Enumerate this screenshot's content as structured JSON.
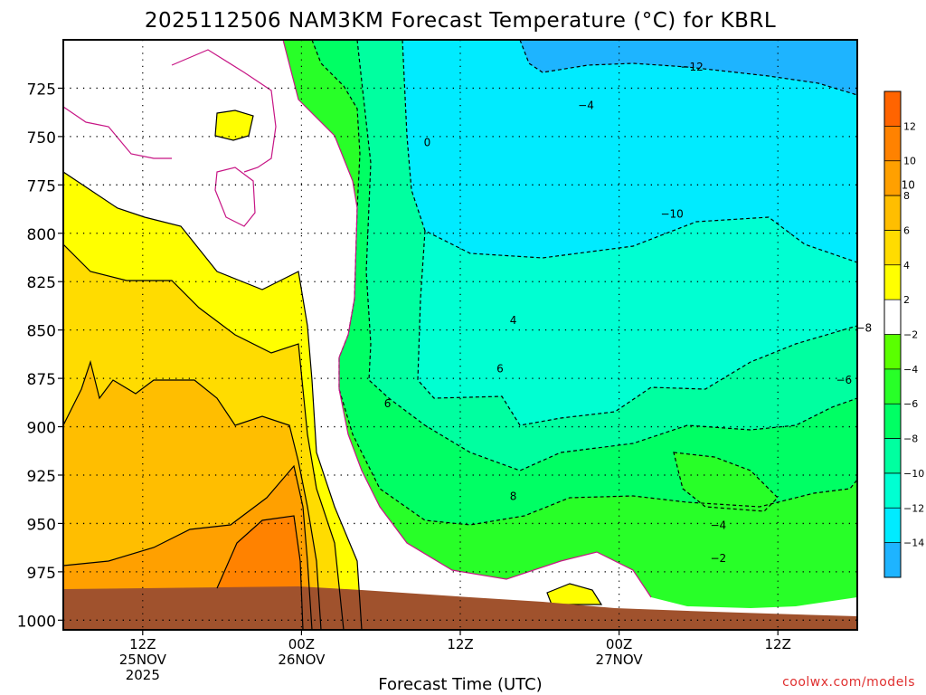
{
  "chart_data": {
    "type": "heatmap",
    "title": "2025112506 NAM3KM Forecast Temperature (°C) for KBRL",
    "xlabel": "Forecast Time (UTC)",
    "ylabel": "",
    "credit": "coolwx.com/models",
    "y_axis": {
      "unit": "hPa",
      "inverted": true,
      "range": [
        1005,
        700
      ],
      "ticks": [
        725,
        750,
        775,
        800,
        825,
        850,
        875,
        900,
        925,
        950,
        975,
        1000
      ]
    },
    "x_axis": {
      "range": [
        "2025-11-25T06Z",
        "2025-11-27T18Z"
      ],
      "ticks": [
        {
          "time": "2025-11-25T12Z",
          "line1": "12Z",
          "line2": "25NOV",
          "line3": "2025"
        },
        {
          "time": "2025-11-26T00Z",
          "line1": "00Z",
          "line2": "26NOV",
          "line3": ""
        },
        {
          "time": "2025-11-26T12Z",
          "line1": "12Z",
          "line2": "",
          "line3": ""
        },
        {
          "time": "2025-11-27T00Z",
          "line1": "00Z",
          "line2": "27NOV",
          "line3": ""
        },
        {
          "time": "2025-11-27T12Z",
          "line1": "12Z",
          "line2": "",
          "line3": ""
        }
      ]
    },
    "colorbar": {
      "levels": [
        -14,
        -12,
        -10,
        -8,
        -6,
        -4,
        -2,
        2,
        4,
        6,
        8,
        10,
        12
      ],
      "label_stride": 1,
      "colors": [
        "#1eb4ff",
        "#00ebff",
        "#00ffd2",
        "#00ffa0",
        "#00ff64",
        "#28ff28",
        "#5aff00",
        "#ffffff",
        "#ffff00",
        "#ffdc00",
        "#ffbe00",
        "#ffa000",
        "#ff8200",
        "#ff6400"
      ]
    },
    "contour_labels": [
      {
        "text": "0",
        "time_h": 33.5,
        "p": 753
      },
      {
        "text": "-4",
        "time_h": 45.5,
        "p": 734
      },
      {
        "text": "-12",
        "time_h": 53.5,
        "p": 714
      },
      {
        "text": "-10",
        "time_h": 52,
        "p": 790
      },
      {
        "text": "-10",
        "time_h": 69.5,
        "p": 775
      },
      {
        "text": "4",
        "time_h": 40,
        "p": 845
      },
      {
        "text": "6",
        "time_h": 39,
        "p": 870
      },
      {
        "text": "6",
        "time_h": 30.5,
        "p": 888
      },
      {
        "text": "8",
        "time_h": 40,
        "p": 936
      },
      {
        "text": "-8",
        "time_h": 66.5,
        "p": 849
      },
      {
        "text": "-6",
        "time_h": 65,
        "p": 876
      },
      {
        "text": "-4",
        "time_h": 55.5,
        "p": 951
      },
      {
        "text": "-2",
        "time_h": 55.5,
        "p": 968
      }
    ],
    "surface": "ground below surface pressure"
  }
}
